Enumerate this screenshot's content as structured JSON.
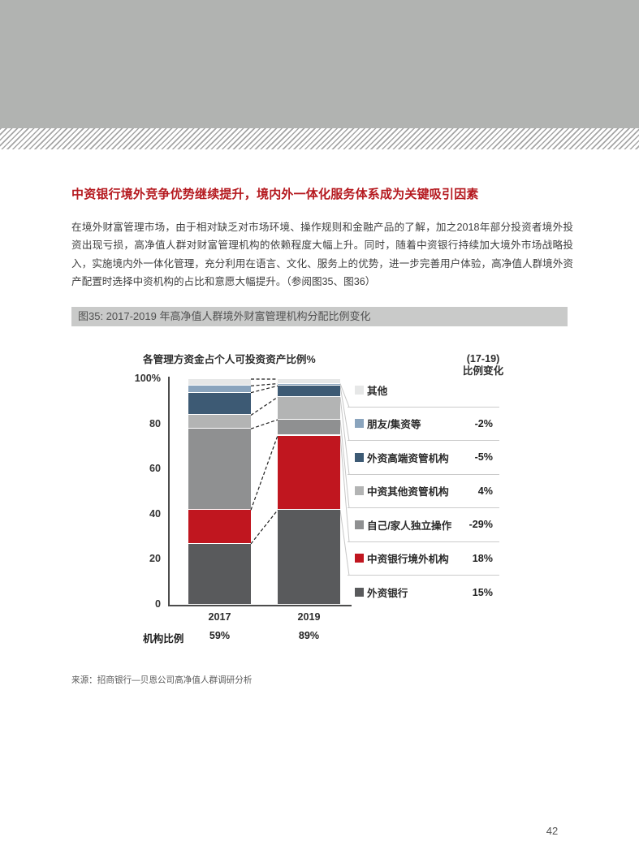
{
  "page_number": "42",
  "heading": "中资银行境外竞争优势继续提升，境内外一体化服务体系成为关键吸引因素",
  "body": "在境外财富管理市场，由于相对缺乏对市场环境、操作规则和金融产品的了解，加之2018年部分投资者境外投资出现亏损，高净值人群对财富管理机构的依赖程度大幅上升。同时，随着中资银行持续加大境外市场战略投入，实施境内外一体化管理，充分利用在语言、文化、服务上的优势，进一步完善用户体验，高净值人群境外资产配置时选择中资机构的占比和意愿大幅提升。（参阅图35、图36）",
  "figure": {
    "title": "图35: 2017-2019 年高净值人群境外财富管理机构分配比例变化",
    "source": "来源：招商银行—贝恩公司高净值人群调研分析"
  },
  "chart_data": {
    "type": "bar",
    "stacked": true,
    "title": "2017-2019 年高净值人群境外财富管理机构分配比例变化",
    "ylabel": "各管理方资金占个人可投资资产比例%",
    "ylim": [
      0,
      100
    ],
    "yticks": [
      "100%",
      "80",
      "60",
      "40",
      "20",
      "0"
    ],
    "categories": [
      "2017",
      "2019"
    ],
    "series_note": "bottom-to-top stacking order; values are percent of total; change shown in legend column (17-19)",
    "series": [
      {
        "name": "外资银行",
        "color": "#595a5c",
        "values": [
          27,
          42
        ],
        "change": "15%"
      },
      {
        "name": "中资银行境外机构",
        "color": "#c0161f",
        "values": [
          15,
          33
        ],
        "change": "18%"
      },
      {
        "name": "自己/家人独立操作",
        "color": "#8f9091",
        "values": [
          36,
          7
        ],
        "change": "-29%"
      },
      {
        "name": "中资其他资管机构",
        "color": "#b3b4b4",
        "values": [
          6,
          10
        ],
        "change": "4%"
      },
      {
        "name": "外资高端资管机构",
        "color": "#3d5a74",
        "values": [
          10,
          5
        ],
        "change": "-5%"
      },
      {
        "name": "朋友/集资等",
        "color": "#8aa4bd",
        "values": [
          3,
          1
        ],
        "change": "-2%"
      },
      {
        "name": "其他",
        "color": "#e6e7e7",
        "values": [
          3,
          2
        ],
        "change": ""
      }
    ],
    "change_header": [
      "(17-19)",
      "比例变化"
    ],
    "footer_row": {
      "label": "机构比例",
      "values": [
        "59%",
        "89%"
      ]
    },
    "legend_position": "right"
  }
}
